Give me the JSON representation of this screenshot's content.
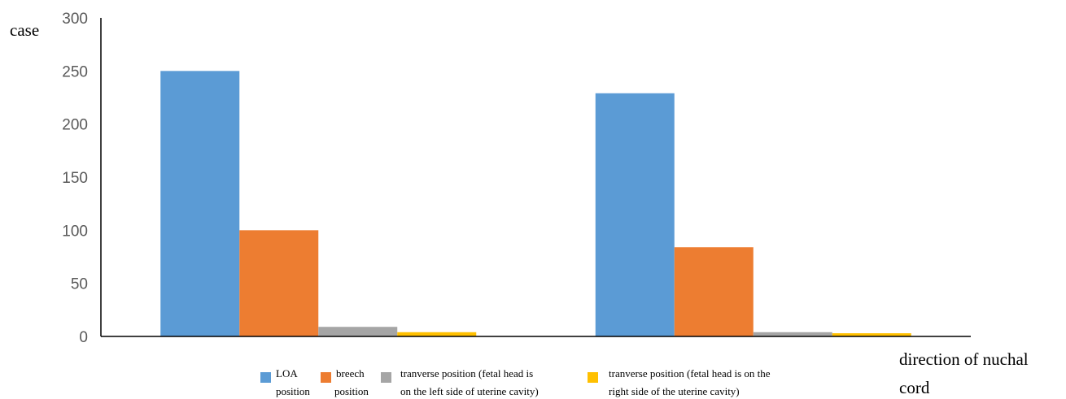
{
  "chart_data": {
    "type": "bar",
    "title": "",
    "ylabel": "case",
    "xlabel_lines": [
      "direction of nuchal",
      "cord"
    ],
    "ylim": [
      0,
      300
    ],
    "yticks": [
      0,
      50,
      100,
      150,
      200,
      250,
      300
    ],
    "categories": [
      "",
      ""
    ],
    "series": [
      {
        "name_lines": [
          "LOA",
          "position"
        ],
        "color": "#5B9BD5",
        "values": [
          250,
          229
        ]
      },
      {
        "name_lines": [
          "breech",
          "position"
        ],
        "color": "#ED7D31",
        "values": [
          100,
          84
        ]
      },
      {
        "name_lines": [
          "tranverse position (fetal head is",
          "on the left side of uterine cavity)"
        ],
        "color": "#A5A5A5",
        "values": [
          9,
          4
        ]
      },
      {
        "name_lines": [
          "tranverse position (fetal head is on the",
          "right side of the uterine cavity)"
        ],
        "color": "#FFC000",
        "values": [
          4,
          3
        ]
      }
    ],
    "legend_position": "bottom",
    "grid": false
  }
}
